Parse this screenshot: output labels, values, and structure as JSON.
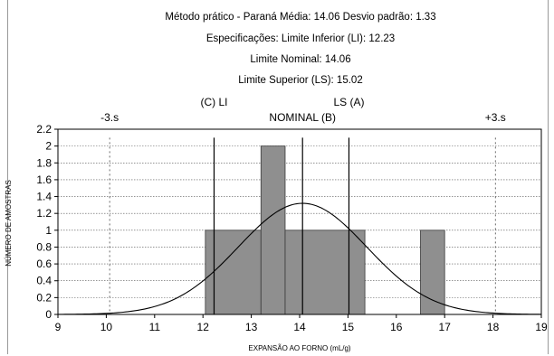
{
  "chart_data": {
    "type": "bar",
    "title_lines": [
      "Método prático - Paraná   Média: 14.06   Desvio padrão: 1.33",
      "Especificações: Limite Inferior (LI): 12.23",
      "Limite  Nominal: 14.06",
      "Limite Superior (LS): 15.02"
    ],
    "xlabel": "EXPANSÃO AO FORNO (mL/g)",
    "ylabel": "NÚMERO DE AMOSTRAS",
    "xlim": [
      9,
      19
    ],
    "ylim": [
      0,
      2.2
    ],
    "xticks": [
      "9",
      "10",
      "11",
      "12",
      "13",
      "14",
      "15",
      "16",
      "17",
      "18",
      "19"
    ],
    "yticks": [
      "0",
      "0.2",
      "0.4",
      "0.6",
      "0.8",
      "1",
      "1.2",
      "1.4",
      "1.6",
      "1.8",
      "2",
      "2.2"
    ],
    "bins": [
      {
        "x0": 12.05,
        "x1": 13.2,
        "count": 1
      },
      {
        "x0": 13.2,
        "x1": 13.7,
        "count": 2
      },
      {
        "x0": 13.7,
        "x1": 15.35,
        "count": 1
      },
      {
        "x0": 16.5,
        "x1": 17.0,
        "count": 1
      }
    ],
    "normal_curve": {
      "mean": 14.06,
      "sd": 1.33,
      "peak": 1.32
    },
    "spec_lines": [
      {
        "x": 12.23,
        "label": "(C) LI",
        "row": "upper"
      },
      {
        "x": 14.06,
        "label": "NOMINAL (B)",
        "row": "lower"
      },
      {
        "x": 15.02,
        "label": "LS (A)",
        "row": "upper"
      }
    ],
    "sigma_lines": [
      {
        "x": 10.07,
        "label": "-3.s"
      },
      {
        "x": 18.05,
        "label": "+3.s"
      }
    ],
    "grid": true,
    "colors": {
      "bar_fill": "#8f8f8f",
      "bar_edge": "#3a3a3a",
      "grid": "#555555",
      "line": "#000000"
    }
  }
}
